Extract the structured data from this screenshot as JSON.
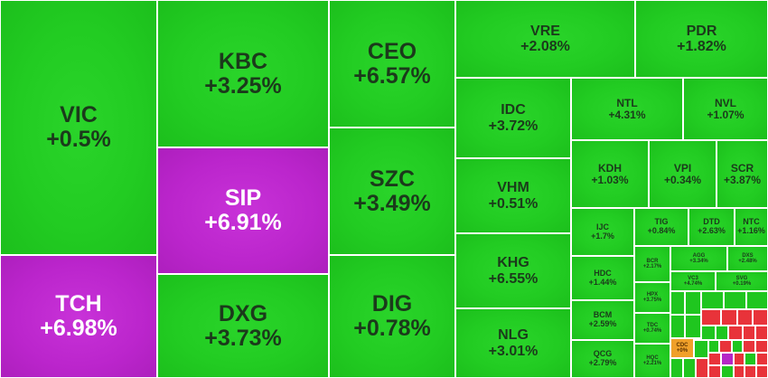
{
  "tiles": [
    {
      "symbol": "VIC",
      "change": "+0.5%"
    },
    {
      "symbol": "TCH",
      "change": "+6.98%"
    },
    {
      "symbol": "KBC",
      "change": "+3.25%"
    },
    {
      "symbol": "SIP",
      "change": "+6.91%"
    },
    {
      "symbol": "DXG",
      "change": "+3.73%"
    },
    {
      "symbol": "CEO",
      "change": "+6.57%"
    },
    {
      "symbol": "SZC",
      "change": "+3.49%"
    },
    {
      "symbol": "DIG",
      "change": "+0.78%"
    },
    {
      "symbol": "VRE",
      "change": "+2.08%"
    },
    {
      "symbol": "PDR",
      "change": "+1.82%"
    },
    {
      "symbol": "IDC",
      "change": "+3.72%"
    },
    {
      "symbol": "VHM",
      "change": "+0.51%"
    },
    {
      "symbol": "KHG",
      "change": "+6.55%"
    },
    {
      "symbol": "NLG",
      "change": "+3.01%"
    },
    {
      "symbol": "NTL",
      "change": "+4.31%"
    },
    {
      "symbol": "NVL",
      "change": "+1.07%"
    },
    {
      "symbol": "KDH",
      "change": "+1.03%"
    },
    {
      "symbol": "VPI",
      "change": "+0.34%"
    },
    {
      "symbol": "SCR",
      "change": "+3.87%"
    },
    {
      "symbol": "IJC",
      "change": "+1.7%"
    },
    {
      "symbol": "HDC",
      "change": "+1.44%"
    },
    {
      "symbol": "BCM",
      "change": "+2.59%"
    },
    {
      "symbol": "QCG",
      "change": "+2.79%"
    },
    {
      "symbol": "TIG",
      "change": "+0.84%"
    },
    {
      "symbol": "DTD",
      "change": "+2.63%"
    },
    {
      "symbol": "NTC",
      "change": "+1.16%"
    },
    {
      "symbol": "BCR",
      "change": "+2.17%"
    },
    {
      "symbol": "AGG",
      "change": "+3.34%"
    },
    {
      "symbol": "DXS",
      "change": "+2.48%"
    },
    {
      "symbol": "HPX",
      "change": "+3.75%"
    },
    {
      "symbol": "VC3",
      "change": "+4.74%"
    },
    {
      "symbol": "SVG",
      "change": "+0.19%"
    },
    {
      "symbol": "TDC",
      "change": "+0.74%"
    },
    {
      "symbol": "HQC",
      "change": "+2.21%"
    },
    {
      "symbol": "CDC",
      "change": "+0%"
    }
  ],
  "colors": {
    "up": "#22cc22",
    "ceiling": "#bb25cc",
    "down": "#e8333a",
    "flat": "#f0a02a"
  }
}
